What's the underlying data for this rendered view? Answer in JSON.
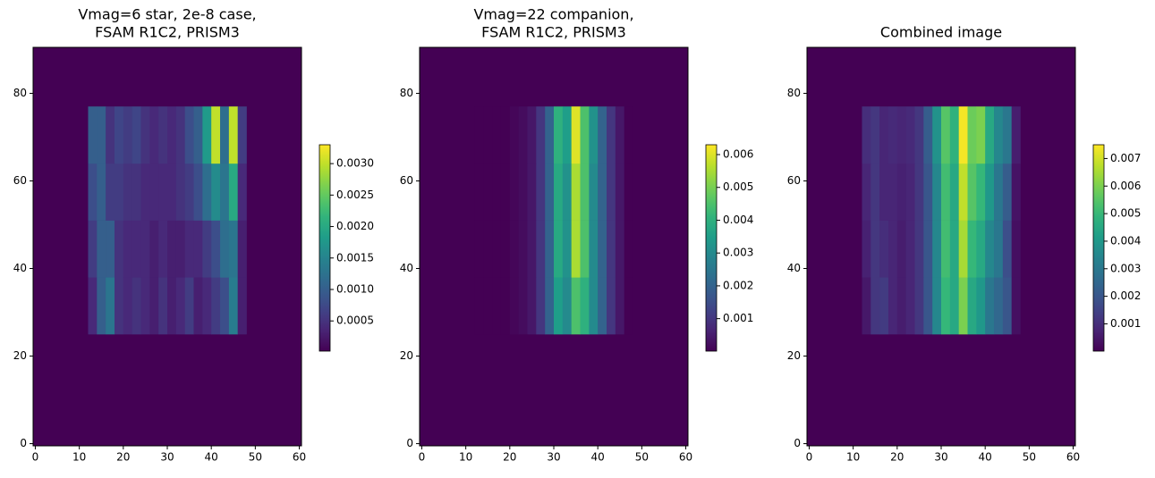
{
  "chart_data": [
    {
      "type": "heatmap",
      "title": [
        "Vmag=6 star, 2e-8 case,",
        "FSAM R1C2, PRISM3"
      ],
      "colormap": "viridis",
      "xlim": [
        -0.5,
        60.5
      ],
      "ylim": [
        -0.5,
        90.5
      ],
      "xticks": [
        0,
        10,
        20,
        30,
        40,
        50,
        60
      ],
      "yticks": [
        0,
        20,
        40,
        60,
        80
      ],
      "xbins": [
        12,
        14,
        16,
        18,
        20,
        22,
        24,
        26,
        28,
        30,
        32,
        34,
        36,
        38,
        40,
        42,
        44,
        46,
        48
      ],
      "ybins": [
        25,
        38,
        51,
        64,
        77
      ],
      "z": [
        [
          0.0004,
          0.001,
          0.0013,
          0.0005,
          0.0004,
          0.0005,
          0.0004,
          0.0003,
          0.0005,
          0.0003,
          0.0004,
          0.0006,
          0.0003,
          0.0004,
          0.0006,
          0.0008,
          0.0014,
          0.0003
        ],
        [
          0.0006,
          0.001,
          0.001,
          0.0005,
          0.0004,
          0.0004,
          0.0004,
          0.0003,
          0.0004,
          0.0003,
          0.0003,
          0.0004,
          0.0004,
          0.0006,
          0.0008,
          0.0012,
          0.0013,
          0.0003
        ],
        [
          0.0008,
          0.001,
          0.0006,
          0.0006,
          0.0005,
          0.0005,
          0.0004,
          0.0004,
          0.0004,
          0.0004,
          0.0005,
          0.0006,
          0.0008,
          0.0012,
          0.0016,
          0.0013,
          0.002,
          0.0004
        ],
        [
          0.001,
          0.001,
          0.0005,
          0.0007,
          0.0006,
          0.0007,
          0.0005,
          0.0004,
          0.0005,
          0.0004,
          0.0005,
          0.0008,
          0.001,
          0.0018,
          0.003,
          0.0012,
          0.003,
          0.0006
        ]
      ],
      "clim": [
        2e-05,
        0.0033
      ],
      "cticks": [
        0.0005,
        {
          "value": 0.001,
          "label": "0.0010"
        },
        0.0015,
        {
          "value": 0.002,
          "label": "0.0020"
        },
        0.0025,
        {
          "value": 0.003,
          "label": "0.0030"
        }
      ]
    },
    {
      "type": "heatmap",
      "title": [
        "Vmag=22 companion,",
        "FSAM R1C2, PRISM3"
      ],
      "colormap": "viridis",
      "xlim": [
        -0.5,
        60.5
      ],
      "ylim": [
        -0.5,
        90.5
      ],
      "xticks": [
        0,
        10,
        20,
        30,
        40,
        50,
        60
      ],
      "yticks": [
        0,
        20,
        40,
        60,
        80
      ],
      "xbins": [
        12,
        14,
        16,
        18,
        20,
        22,
        24,
        26,
        28,
        30,
        32,
        34,
        36,
        38,
        40,
        42,
        44,
        46,
        48
      ],
      "ybins": [
        25,
        38,
        51,
        64,
        77
      ],
      "z": [
        [
          0,
          0,
          0,
          0,
          0.0001,
          0.0002,
          0.0004,
          0.001,
          0.002,
          0.0035,
          0.003,
          0.0045,
          0.004,
          0.003,
          0.002,
          0.001,
          0.0004,
          0
        ],
        [
          0,
          0,
          0,
          0,
          0.0001,
          0.0002,
          0.0004,
          0.001,
          0.002,
          0.0038,
          0.0032,
          0.0055,
          0.0045,
          0.003,
          0.002,
          0.001,
          0.0004,
          0
        ],
        [
          0,
          0,
          0,
          0,
          0.0001,
          0.0002,
          0.0004,
          0.001,
          0.002,
          0.0038,
          0.0032,
          0.0055,
          0.0045,
          0.003,
          0.002,
          0.001,
          0.0004,
          0
        ],
        [
          0,
          0,
          0,
          0,
          0.0001,
          0.0002,
          0.0004,
          0.001,
          0.002,
          0.004,
          0.0035,
          0.006,
          0.0045,
          0.0032,
          0.002,
          0.001,
          0.0004,
          0
        ]
      ],
      "clim": [
        1e-05,
        0.0063
      ],
      "cticks": [
        0.001,
        0.002,
        0.003,
        0.004,
        0.005,
        0.006
      ]
    },
    {
      "type": "heatmap",
      "title": [
        "Combined image"
      ],
      "colormap": "viridis",
      "xlim": [
        -0.5,
        60.5
      ],
      "ylim": [
        -0.5,
        90.5
      ],
      "xticks": [
        0,
        10,
        20,
        30,
        40,
        50,
        60
      ],
      "yticks": [
        0,
        20,
        40,
        60,
        80
      ],
      "xbins": [
        12,
        14,
        16,
        18,
        20,
        22,
        24,
        26,
        28,
        30,
        32,
        34,
        36,
        38,
        40,
        42,
        44,
        46,
        48
      ],
      "ybins": [
        25,
        38,
        51,
        64,
        77
      ],
      "z": [
        [
          0.0005,
          0.0012,
          0.0013,
          0.0008,
          0.0006,
          0.0008,
          0.0012,
          0.002,
          0.0035,
          0.005,
          0.0045,
          0.006,
          0.0045,
          0.004,
          0.003,
          0.0025,
          0.002,
          0.0003
        ],
        [
          0.0007,
          0.0012,
          0.001,
          0.0008,
          0.0006,
          0.0008,
          0.0012,
          0.002,
          0.0035,
          0.0052,
          0.0045,
          0.0065,
          0.005,
          0.0045,
          0.0035,
          0.003,
          0.0018,
          0.0003
        ],
        [
          0.0008,
          0.0012,
          0.0008,
          0.0008,
          0.0007,
          0.0008,
          0.0012,
          0.002,
          0.0035,
          0.0052,
          0.0045,
          0.0068,
          0.0055,
          0.005,
          0.004,
          0.003,
          0.0022,
          0.0004
        ],
        [
          0.001,
          0.0012,
          0.0008,
          0.0009,
          0.0008,
          0.0009,
          0.0012,
          0.0022,
          0.0038,
          0.0055,
          0.0048,
          0.0074,
          0.0058,
          0.006,
          0.0045,
          0.0035,
          0.003,
          0.0006
        ]
      ],
      "clim": [
        1e-05,
        0.0075
      ],
      "cticks": [
        0.001,
        0.002,
        0.003,
        0.004,
        0.005,
        0.006,
        0.007
      ]
    }
  ]
}
